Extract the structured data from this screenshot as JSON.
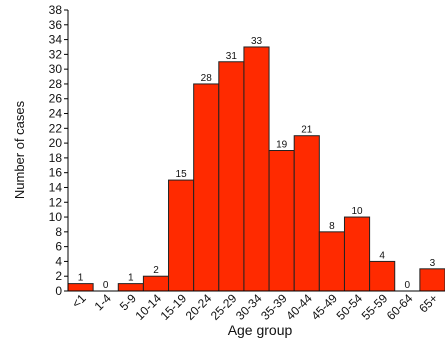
{
  "chart_data": {
    "type": "bar",
    "xlabel": "Age group",
    "ylabel": "Number of cases",
    "ylim": [
      0,
      38
    ],
    "ytick_step": 2,
    "grid": false,
    "legend": "none",
    "categories": [
      "<1",
      "1-4",
      "5-9",
      "10-14",
      "15-19",
      "20-24",
      "25-29",
      "30-34",
      "35-39",
      "40-44",
      "45-49",
      "50-54",
      "55-59",
      "60-64",
      "65+"
    ],
    "values": [
      1,
      0,
      1,
      2,
      15,
      28,
      31,
      33,
      19,
      21,
      8,
      10,
      4,
      0,
      3
    ],
    "bar_color": "#ff2a00",
    "bar_edge_color": "#222222"
  }
}
